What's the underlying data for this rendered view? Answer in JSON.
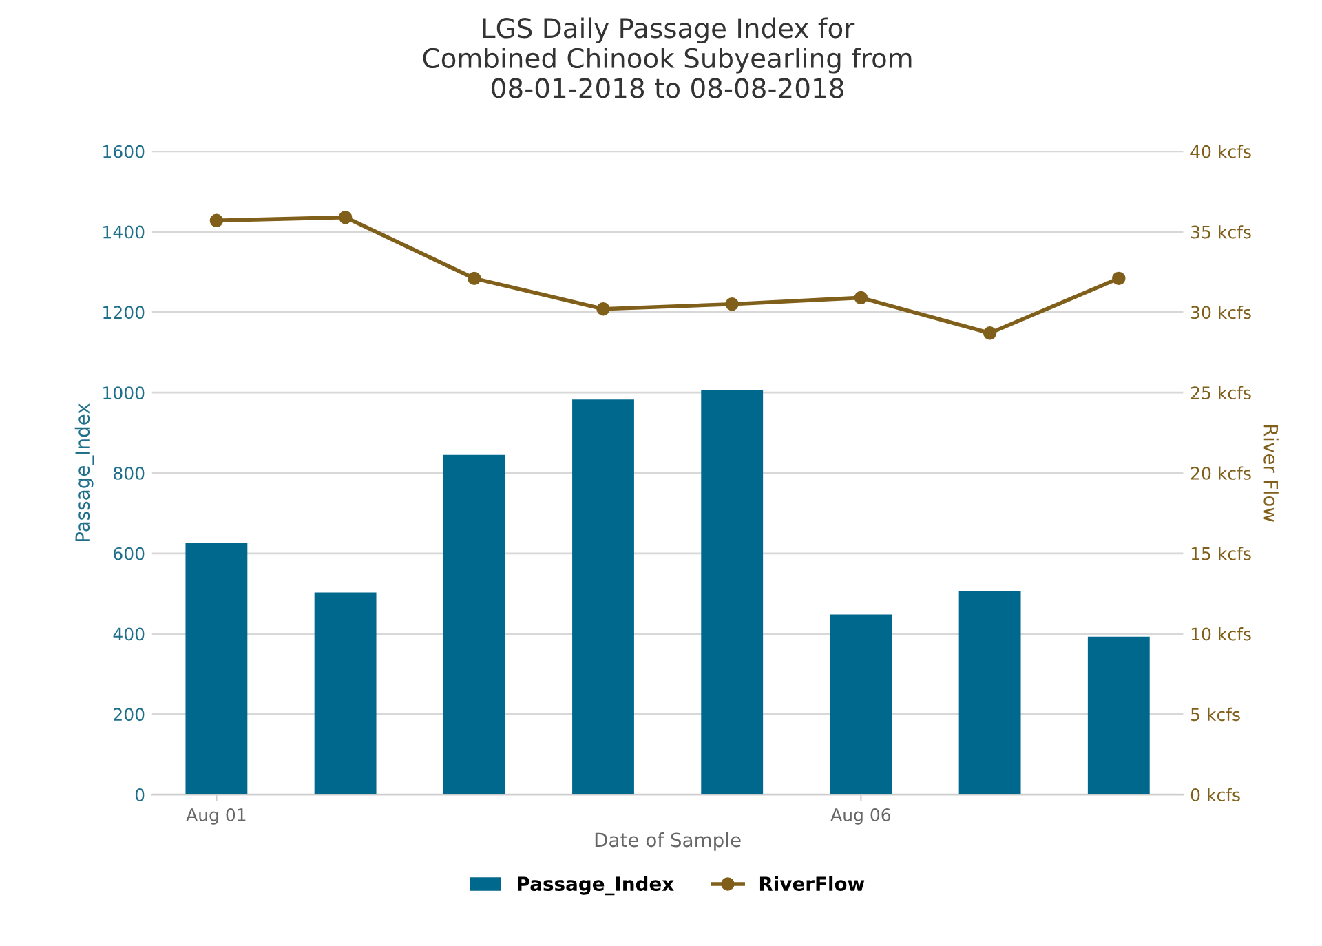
{
  "chart_data": {
    "type": "bar",
    "title": "LGS Daily Passage Index for\nCombined Chinook Subyearling from\n08-01-2018 to 08-08-2018",
    "xlabel": "Date of Sample",
    "ylabel": "Passage_Index",
    "y2label": "River Flow",
    "x": [
      "2018-08-01",
      "2018-08-02",
      "2018-08-03",
      "2018-08-04",
      "2018-08-05",
      "2018-08-06",
      "2018-08-07",
      "2018-08-08"
    ],
    "xlim": [
      "2018-07-31T12:00",
      "2018-08-08T12:00"
    ],
    "xticks": [
      {
        "value": "2018-08-01",
        "label": "Aug 01"
      },
      {
        "value": "2018-08-06",
        "label": "Aug 06"
      }
    ],
    "series": [
      {
        "name": "Passage_Index",
        "color": "#00688c",
        "values": [
          627,
          503,
          845,
          983,
          1007,
          448,
          507,
          393
        ]
      },
      {
        "name": "RiverFlow",
        "type": "line",
        "axis": "y2",
        "color": "#7f5f1a",
        "values": [
          35.7,
          35.9,
          32.1,
          30.2,
          30.5,
          30.9,
          28.7,
          32.1
        ]
      }
    ],
    "ylim": [
      0,
      1600
    ],
    "yticks": [
      0,
      200,
      400,
      600,
      800,
      1000,
      1200,
      1400,
      1600
    ],
    "y2lim": [
      0,
      40
    ],
    "y2ticks": [
      {
        "value": 0,
        "label": "0 kcfs"
      },
      {
        "value": 5,
        "label": "5 kcfs"
      },
      {
        "value": 10,
        "label": "10 kcfs"
      },
      {
        "value": 15,
        "label": "15 kcfs"
      },
      {
        "value": 20,
        "label": "20 kcfs"
      },
      {
        "value": 25,
        "label": "25 kcfs"
      },
      {
        "value": 30,
        "label": "30 kcfs"
      },
      {
        "value": 35,
        "label": "35 kcfs"
      },
      {
        "value": 40,
        "label": "40 kcfs"
      }
    ],
    "grid": "y",
    "legend": "bottom",
    "marker": "circle",
    "line_style": "solid"
  }
}
